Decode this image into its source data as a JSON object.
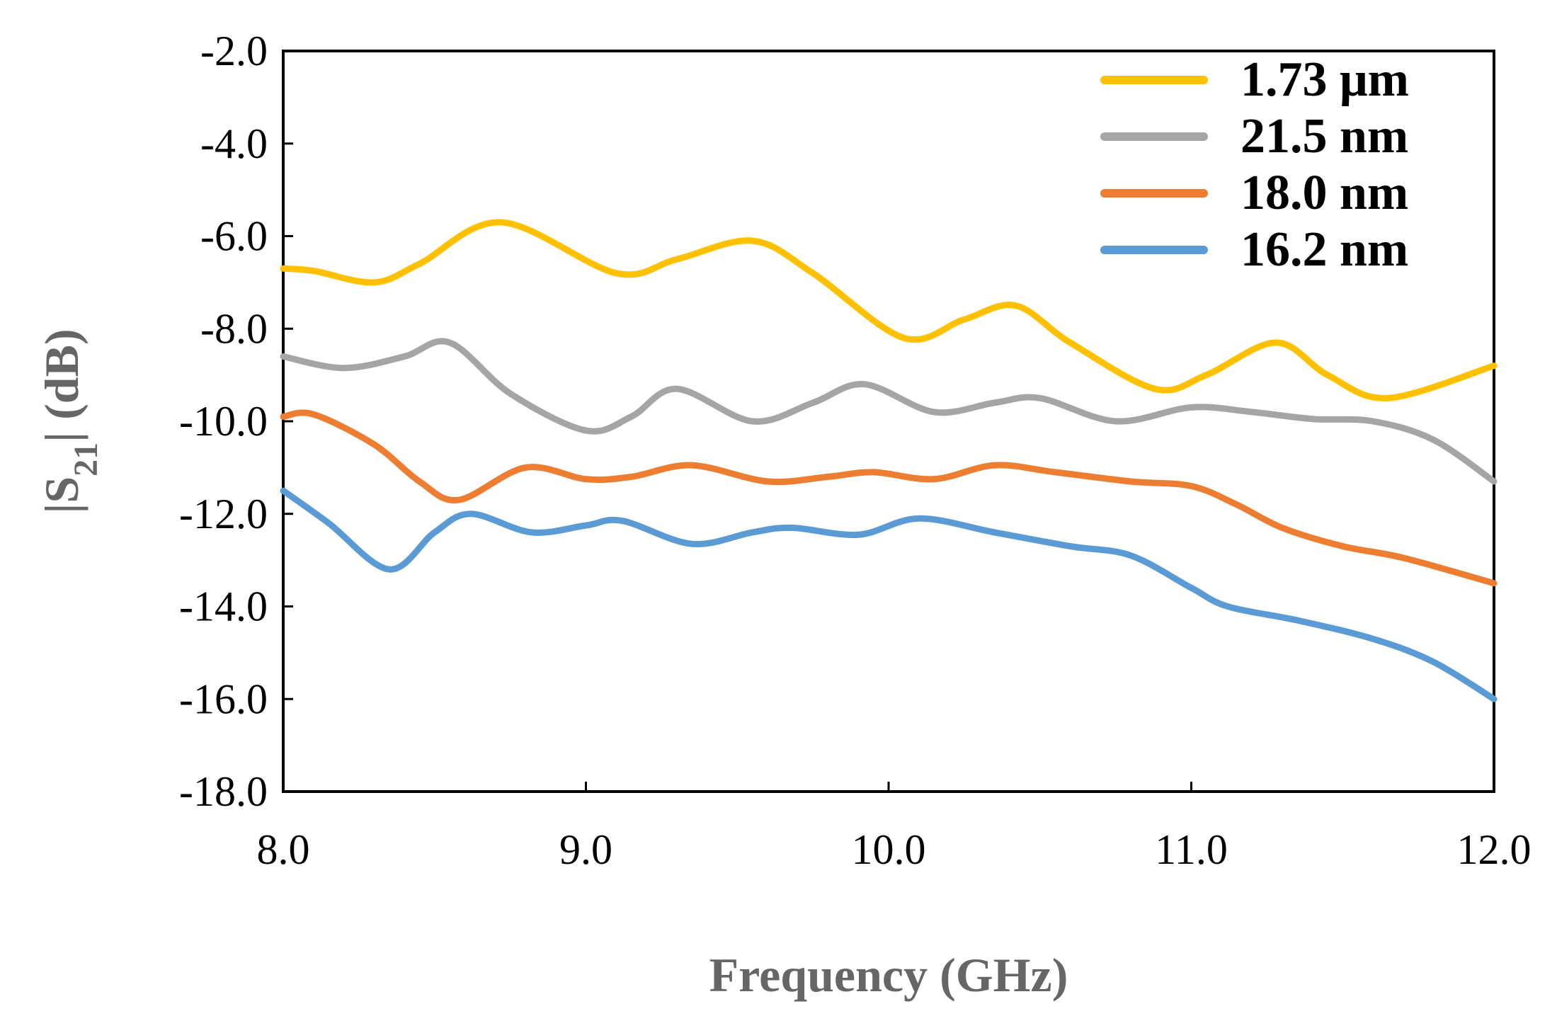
{
  "chart_data": {
    "type": "line",
    "title": "",
    "xlabel": "Frequency (GHz)",
    "ylabel_prefix": "|S",
    "ylabel_sub": "21",
    "ylabel_suffix": "| (dB)",
    "xlim": [
      8.0,
      12.0
    ],
    "ylim": [
      -18.0,
      -2.0
    ],
    "grid": false,
    "legend_position": "top-right",
    "x_ticks": [
      8.0,
      9.0,
      10.0,
      11.0,
      12.0
    ],
    "x_tick_labels": [
      "8.0",
      "9.0",
      "10.0",
      "11.0",
      "12.0"
    ],
    "y_ticks": [
      -2.0,
      -4.0,
      -6.0,
      -8.0,
      -10.0,
      -12.0,
      -14.0,
      -16.0,
      -18.0
    ],
    "y_tick_labels": [
      "-2.0",
      "-4.0",
      "-6.0",
      "-8.0",
      "-10.0",
      "-12.0",
      "-14.0",
      "-16.0",
      "-18.0"
    ],
    "series": [
      {
        "name": "1.73 μm",
        "color": "#FFC000",
        "x": [
          8.0,
          8.1,
          8.3,
          8.45,
          8.72,
          9.1,
          9.3,
          9.55,
          9.75,
          10.05,
          10.25,
          10.42,
          10.6,
          10.88,
          11.05,
          11.28,
          11.45,
          11.65,
          12.0
        ],
        "y": [
          -6.7,
          -6.75,
          -7.0,
          -6.6,
          -5.7,
          -6.8,
          -6.5,
          -6.1,
          -6.8,
          -8.2,
          -7.8,
          -7.5,
          -8.3,
          -9.3,
          -9.0,
          -8.3,
          -9.0,
          -9.5,
          -8.8
        ]
      },
      {
        "name": "21.5 nm",
        "color": "#A5A5A5",
        "x": [
          8.0,
          8.2,
          8.4,
          8.55,
          8.75,
          9.0,
          9.15,
          9.3,
          9.55,
          9.75,
          9.92,
          10.15,
          10.35,
          10.5,
          10.75,
          11.0,
          11.2,
          11.4,
          11.6,
          11.8,
          12.0
        ],
        "y": [
          -8.6,
          -8.85,
          -8.6,
          -8.3,
          -9.4,
          -10.2,
          -9.9,
          -9.3,
          -10.0,
          -9.6,
          -9.2,
          -9.8,
          -9.6,
          -9.5,
          -10.0,
          -9.7,
          -9.8,
          -9.95,
          -10.0,
          -10.4,
          -11.3
        ]
      },
      {
        "name": "18.0 nm",
        "color": "#ED7D31",
        "x": [
          8.0,
          8.1,
          8.3,
          8.45,
          8.58,
          8.8,
          9.0,
          9.15,
          9.35,
          9.6,
          9.8,
          9.95,
          10.15,
          10.35,
          10.55,
          10.8,
          11.0,
          11.15,
          11.3,
          11.5,
          11.7,
          12.0
        ],
        "y": [
          -9.9,
          -9.85,
          -10.5,
          -11.3,
          -11.7,
          -11.0,
          -11.25,
          -11.2,
          -10.95,
          -11.3,
          -11.2,
          -11.1,
          -11.25,
          -10.95,
          -11.1,
          -11.3,
          -11.4,
          -11.8,
          -12.3,
          -12.7,
          -12.95,
          -13.5
        ]
      },
      {
        "name": "16.2 nm",
        "color": "#5B9BD5",
        "x": [
          8.0,
          8.15,
          8.35,
          8.5,
          8.62,
          8.82,
          9.0,
          9.12,
          9.35,
          9.55,
          9.68,
          9.9,
          10.1,
          10.35,
          10.6,
          10.8,
          11.0,
          11.12,
          11.35,
          11.6,
          11.8,
          12.0
        ],
        "y": [
          -11.5,
          -12.2,
          -13.2,
          -12.4,
          -12.0,
          -12.4,
          -12.25,
          -12.15,
          -12.65,
          -12.4,
          -12.3,
          -12.45,
          -12.1,
          -12.4,
          -12.7,
          -12.9,
          -13.6,
          -14.0,
          -14.3,
          -14.7,
          -15.2,
          -16.0
        ]
      }
    ]
  }
}
